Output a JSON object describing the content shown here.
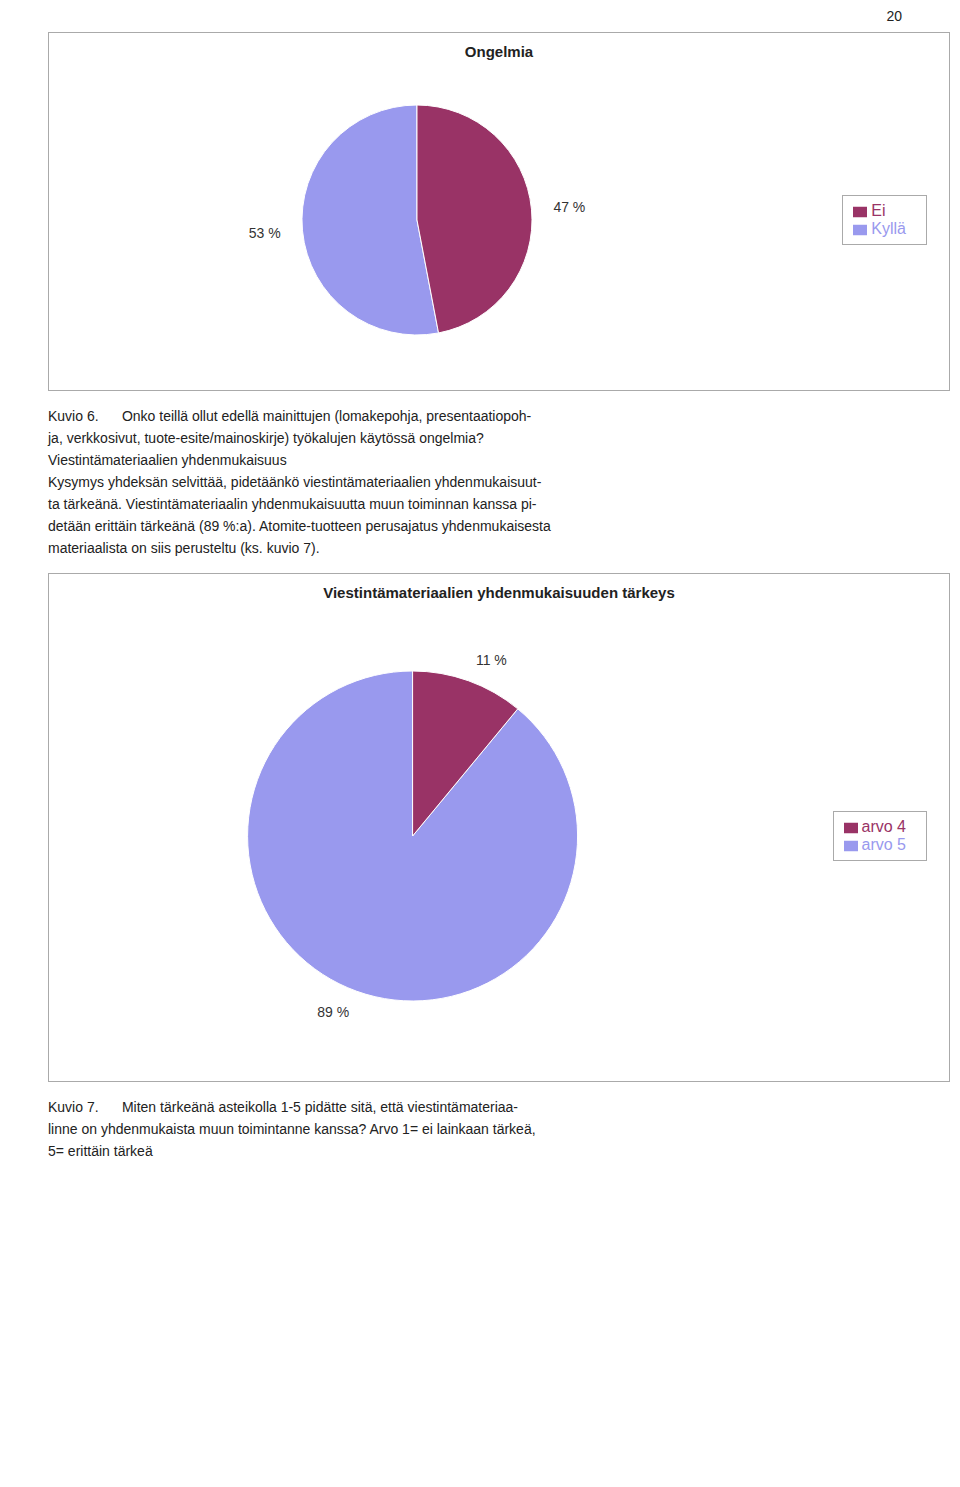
{
  "chart_data": [
    {
      "type": "pie",
      "title": "Ongelmia",
      "categories": [
        "Kyllä",
        "Ei"
      ],
      "values": [
        53,
        47
      ],
      "value_labels": [
        "53 %",
        "47 %"
      ],
      "colors": [
        "#9999ee",
        "#993366"
      ],
      "data_labels": true,
      "legend": "right",
      "annotations": [
        "Kuvio 6.      Onko teillä ollut edellä mainittujen (lomakepohja, presentaatiopoh-",
        "ja, verkkosivut, tuote-esite/mainoskirje) työkalujen käytössä ongelmia?",
        "Viestintämateriaalien yhdenmukaisuus",
        "Kysymys yhdeksän selvittää, pidetäänkö viestintämateriaalien yhdenmukaisuut-",
        "ta tärkeänä. Viestintämateriaalin yhdenmukaisuutta muun toiminnan kanssa pi-",
        "detään erittäin tärkeänä (89 %:a). Atomite-tuotteen perusajatus yhdenmukaisesta",
        "materiaalista on siis perusteltu (ks. kuvio 7)."
      ]
    },
    {
      "type": "pie",
      "title": "Viestintämateriaalien yhdenmukaisuuden tärkeys",
      "categories": [
        "arvo 5",
        "arvo 4"
      ],
      "values": [
        89,
        11
      ],
      "value_labels": [
        "89 %",
        "11 %"
      ],
      "colors": [
        "#9999ee",
        "#993366"
      ],
      "data_labels": true,
      "legend": "right",
      "annotations": [
        "Kuvio 7.      Miten tärkeänä asteikolla 1-5 pidätte sitä, että viestintämateriaa-",
        "linne on yhdenmukaista muun toimintanne kanssa? Arvo 1= ei lainkaan tärkeä,",
        "5= erittäin tärkeä"
      ]
    }
  ],
  "annotations": [
    "20"
  ]
}
